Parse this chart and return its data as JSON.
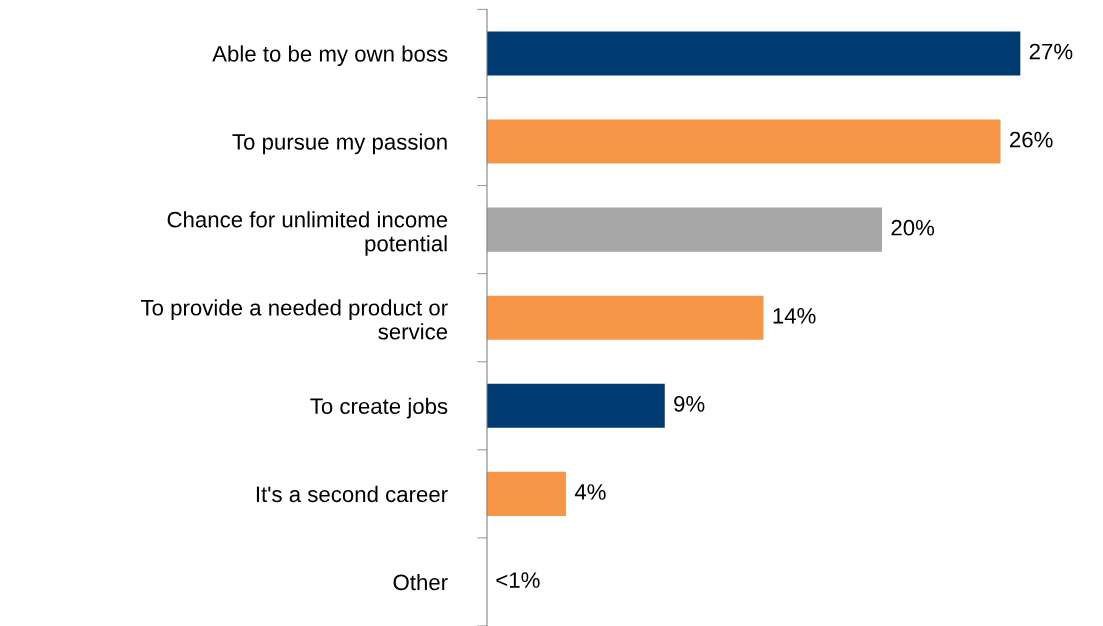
{
  "chart_data": {
    "type": "bar",
    "orientation": "horizontal",
    "categories": [
      "Able to be my own boss",
      "To pursue my passion",
      "Chance for unlimited income potential",
      "To provide a needed product or service",
      "To create jobs",
      "It's a second career",
      "Other"
    ],
    "values": [
      27,
      26,
      20,
      14,
      9,
      4,
      0
    ],
    "colors": [
      "#003a70",
      "#f79646",
      "#a6a6a6",
      "#f79646",
      "#003a70",
      "#f79646",
      "#f79646"
    ],
    "value_labels": [
      "27%",
      "26%",
      "20%",
      "14%",
      "9%",
      "4%",
      "<1%"
    ],
    "grid": false,
    "legend": false
  }
}
